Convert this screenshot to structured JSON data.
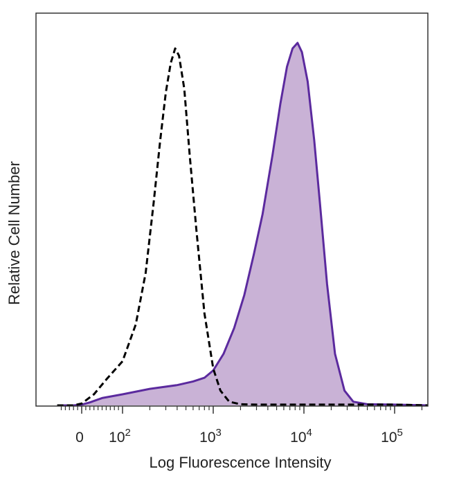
{
  "chart_data": {
    "type": "area",
    "title": "",
    "xlabel": "Log Fluorescence Intensity",
    "ylabel": "Relative Cell Number",
    "x_scale": "biexponential (log above 10^2, linear around 0)",
    "xlim": [
      -60,
      300000
    ],
    "ylim": [
      0,
      1
    ],
    "x_ticks": [
      {
        "value": 0,
        "label": "0",
        "base": "0",
        "exp": ""
      },
      {
        "value": 100,
        "label": "10^2",
        "base": "10",
        "exp": "2"
      },
      {
        "value": 1000,
        "label": "10^3",
        "base": "10",
        "exp": "3"
      },
      {
        "value": 10000,
        "label": "10^4",
        "base": "10",
        "exp": "4"
      },
      {
        "value": 100000,
        "label": "10^5",
        "base": "10",
        "exp": "5"
      }
    ],
    "grid": false,
    "series": [
      {
        "style": "dashed-outline",
        "color": "#000000",
        "x": [
          -60,
          -20,
          0,
          30,
          60,
          100,
          140,
          180,
          220,
          260,
          300,
          340,
          380,
          420,
          480,
          550,
          650,
          800,
          1000,
          1200,
          1500,
          2000,
          3000,
          5000,
          10000,
          100000,
          300000
        ],
        "y": [
          0,
          0,
          0.005,
          0.03,
          0.07,
          0.12,
          0.22,
          0.36,
          0.55,
          0.72,
          0.85,
          0.93,
          0.97,
          0.95,
          0.86,
          0.68,
          0.48,
          0.25,
          0.1,
          0.04,
          0.01,
          0.003,
          0.002,
          0.002,
          0.002,
          0.002,
          0
        ]
      },
      {
        "style": "filled",
        "color": "#5b2a9e",
        "fill": "#c9b2d6",
        "x": [
          -60,
          -20,
          0,
          20,
          50,
          100,
          200,
          400,
          600,
          800,
          1000,
          1300,
          1700,
          2200,
          2800,
          3500,
          4500,
          5500,
          6500,
          7500,
          8500,
          9500,
          11000,
          13000,
          15000,
          18000,
          22000,
          28000,
          35000,
          50000,
          100000,
          300000
        ],
        "y": [
          0,
          0,
          0.002,
          0.008,
          0.02,
          0.03,
          0.045,
          0.055,
          0.065,
          0.075,
          0.095,
          0.14,
          0.21,
          0.3,
          0.41,
          0.52,
          0.68,
          0.82,
          0.92,
          0.97,
          0.985,
          0.96,
          0.88,
          0.72,
          0.55,
          0.33,
          0.14,
          0.04,
          0.01,
          0.003,
          0.002,
          0
        ]
      }
    ]
  }
}
